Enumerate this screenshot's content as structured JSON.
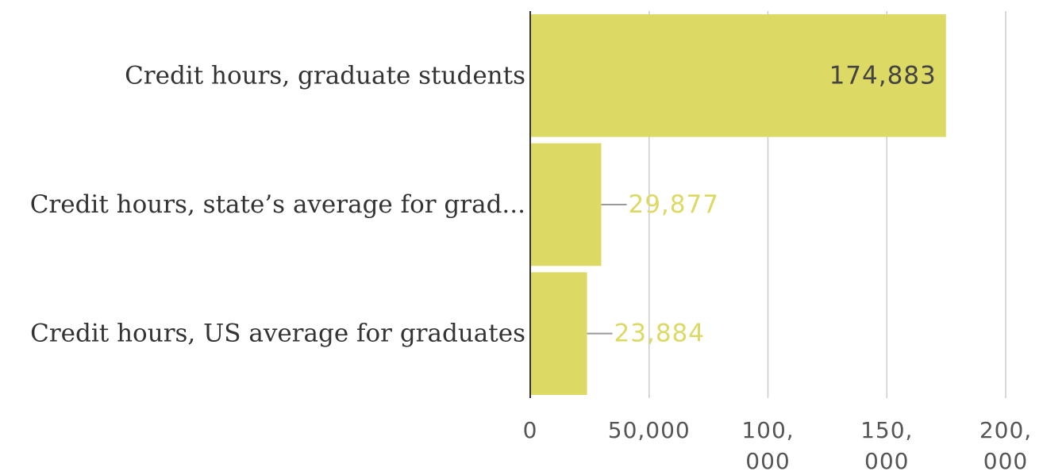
{
  "chart_data": {
    "type": "bar",
    "orientation": "horizontal",
    "categories": [
      "Credit hours, graduate students",
      "Credit hours, state’s average for grad...",
      "Credit hours, US average for graduates"
    ],
    "values": [
      174883,
      29877,
      23884
    ],
    "value_labels": [
      "174,883",
      "29,877",
      "23,884"
    ],
    "xlim": [
      0,
      200000
    ],
    "x_ticks": [
      {
        "value": 0,
        "lines": [
          "0"
        ]
      },
      {
        "value": 50000,
        "lines": [
          "50,000"
        ]
      },
      {
        "value": 100000,
        "lines": [
          "100,",
          "000"
        ]
      },
      {
        "value": 150000,
        "lines": [
          "150,",
          "000"
        ]
      },
      {
        "value": 200000,
        "lines": [
          "200,",
          "000"
        ]
      }
    ],
    "grid": true,
    "legend": "none",
    "title": "",
    "xlabel": "",
    "ylabel": "",
    "colors": {
      "bar": "#dcd964",
      "label_inside": "#444444",
      "label_outside": "#dcd964",
      "gridline": "#cccccc",
      "axis": "#333333",
      "leader": "#999999"
    }
  }
}
